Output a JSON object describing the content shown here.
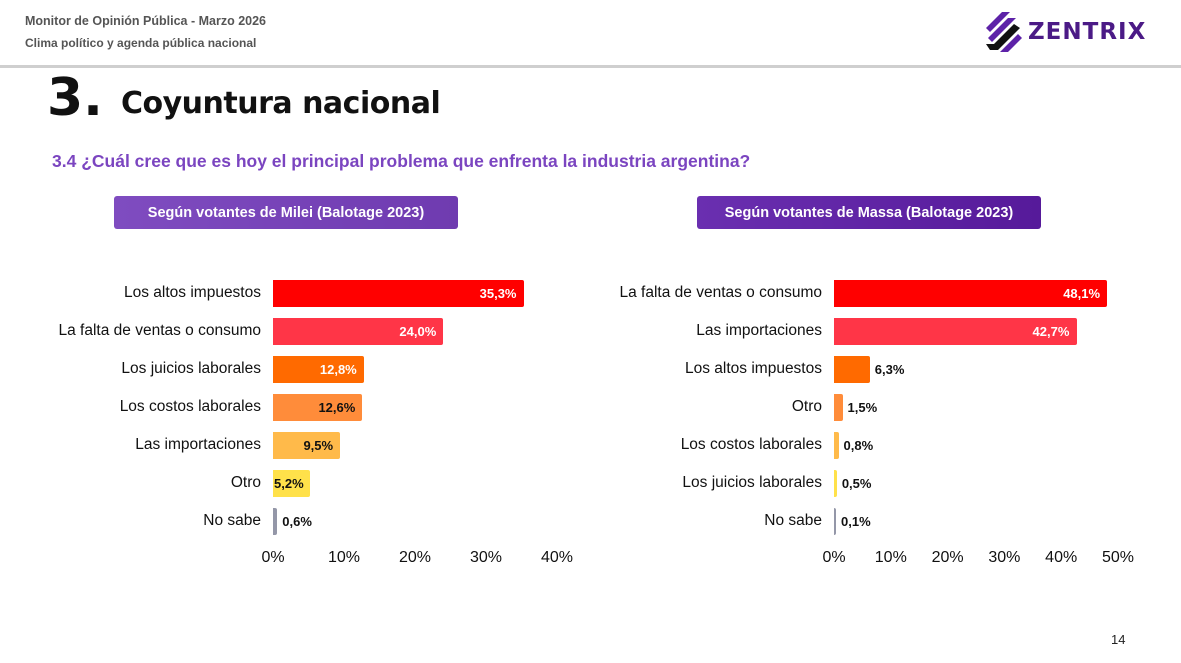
{
  "header": {
    "report_title": "Monitor de Opinión Pública - Marzo 2026",
    "report_subtitle": "Clima político y agenda pública nacional",
    "brand": "ZENTRIX",
    "brand_color": "#4b1a86"
  },
  "section": {
    "number": "3.",
    "title": "Coyuntura nacional",
    "question": "3.4 ¿Cuál cree que es hoy el principal problema que enfrenta la industria argentina?"
  },
  "page_number": "14",
  "chart_data": [
    {
      "type": "bar",
      "orientation": "horizontal",
      "title": "Según votantes de Milei (Balotage 2023)",
      "categories": [
        "Los altos impuestos",
        "La falta de ventas o consumo",
        "Los juicios laborales",
        "Los costos laborales",
        "Las importaciones",
        "Otro",
        "No sabe"
      ],
      "values": [
        35.3,
        24.0,
        12.8,
        12.6,
        9.5,
        5.2,
        0.6
      ],
      "value_labels": [
        "35,3%",
        "24,0%",
        "12,8%",
        "12,6%",
        "9,5%",
        "5,2%",
        "0,6%"
      ],
      "colors": [
        "#ff0000",
        "#ff3547",
        "#ff6a00",
        "#ff8c3a",
        "#ffba4a",
        "#ffe14a",
        "#9497a8"
      ],
      "label_colors": [
        "#ffffff",
        "#ffffff",
        "#ffffff",
        "#111111",
        "#111111",
        "#111111",
        "#111111"
      ],
      "label_inside": [
        true,
        true,
        true,
        true,
        true,
        true,
        false
      ],
      "xlim": [
        0,
        40
      ],
      "xticks": [
        "0%",
        "10%",
        "20%",
        "30%",
        "40%"
      ],
      "xtick_values": [
        0,
        10,
        20,
        30,
        40
      ],
      "xlabel": "",
      "ylabel": "",
      "grid": false
    },
    {
      "type": "bar",
      "orientation": "horizontal",
      "title": "Según votantes de Massa (Balotage 2023)",
      "categories": [
        "La falta de ventas o consumo",
        "Las importaciones",
        "Los altos impuestos",
        "Otro",
        "Los costos laborales",
        "Los juicios laborales",
        "No sabe"
      ],
      "values": [
        48.1,
        42.7,
        6.3,
        1.5,
        0.8,
        0.5,
        0.1
      ],
      "value_labels": [
        "48,1%",
        "42,7%",
        "6,3%",
        "1,5%",
        "0,8%",
        "0,5%",
        "0,1%"
      ],
      "colors": [
        "#ff0000",
        "#ff3547",
        "#ff6a00",
        "#ff8c3a",
        "#ffba4a",
        "#ffe14a",
        "#9497a8"
      ],
      "label_colors": [
        "#ffffff",
        "#ffffff",
        "#111111",
        "#111111",
        "#111111",
        "#111111",
        "#111111"
      ],
      "label_inside": [
        true,
        true,
        false,
        false,
        false,
        false,
        false
      ],
      "xlim": [
        0,
        50
      ],
      "xticks": [
        "0%",
        "10%",
        "20%",
        "30%",
        "40%",
        "50%"
      ],
      "xtick_values": [
        0,
        10,
        20,
        30,
        40,
        50
      ],
      "xlabel": "",
      "ylabel": "",
      "grid": false
    }
  ]
}
